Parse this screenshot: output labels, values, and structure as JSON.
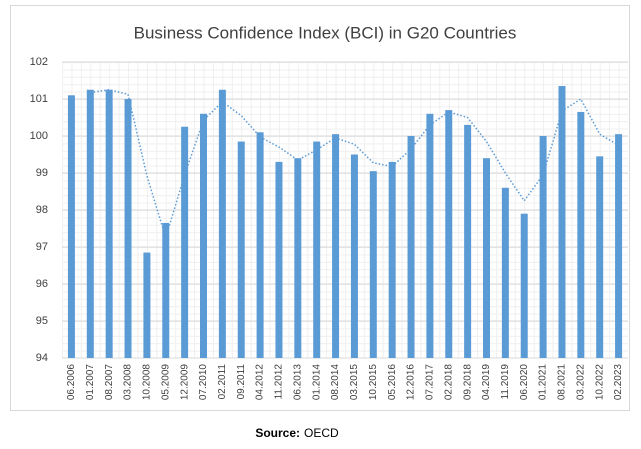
{
  "chart_data": {
    "type": "bar",
    "title": "Business Confidence Index (BCI) in G20 Countries",
    "categories": [
      "06.2006",
      "01.2007",
      "08.2007",
      "03.2008",
      "10.2008",
      "05.2009",
      "12.2009",
      "07.2010",
      "02.2011",
      "09.2011",
      "04.2012",
      "11.2012",
      "06.2013",
      "01.2014",
      "08.2014",
      "03.2015",
      "10.2015",
      "05.2016",
      "12.2016",
      "07.2017",
      "02.2018",
      "09.2018",
      "04.2019",
      "11.2019",
      "06.2020",
      "01.2021",
      "08.2021",
      "03.2022",
      "10.2022",
      "02.2023"
    ],
    "values": [
      101.1,
      101.25,
      101.25,
      101.0,
      96.85,
      97.65,
      100.25,
      100.6,
      101.25,
      99.85,
      100.1,
      99.3,
      99.4,
      99.85,
      100.05,
      99.5,
      99.05,
      99.3,
      100.0,
      100.6,
      100.7,
      100.3,
      99.4,
      98.6,
      97.9,
      100.0,
      101.35,
      100.65,
      99.45,
      100.05
    ],
    "color": "#5b9bd5",
    "trendline": {
      "color": "#5b9bd5",
      "values": [
        null,
        101.175,
        101.25,
        101.125,
        98.925,
        97.25,
        98.95,
        100.425,
        100.925,
        100.55,
        99.975,
        99.7,
        99.35,
        99.625,
        99.95,
        99.775,
        99.275,
        99.175,
        99.65,
        100.3,
        100.65,
        100.5,
        99.85,
        99.0,
        98.25,
        98.95,
        100.675,
        101.0,
        100.05,
        99.75
      ]
    },
    "ylim": [
      94,
      102
    ],
    "yticks": [
      94,
      95,
      96,
      97,
      98,
      99,
      100,
      101,
      102
    ],
    "grid": true,
    "source_label": "Source:",
    "source": "OECD"
  }
}
